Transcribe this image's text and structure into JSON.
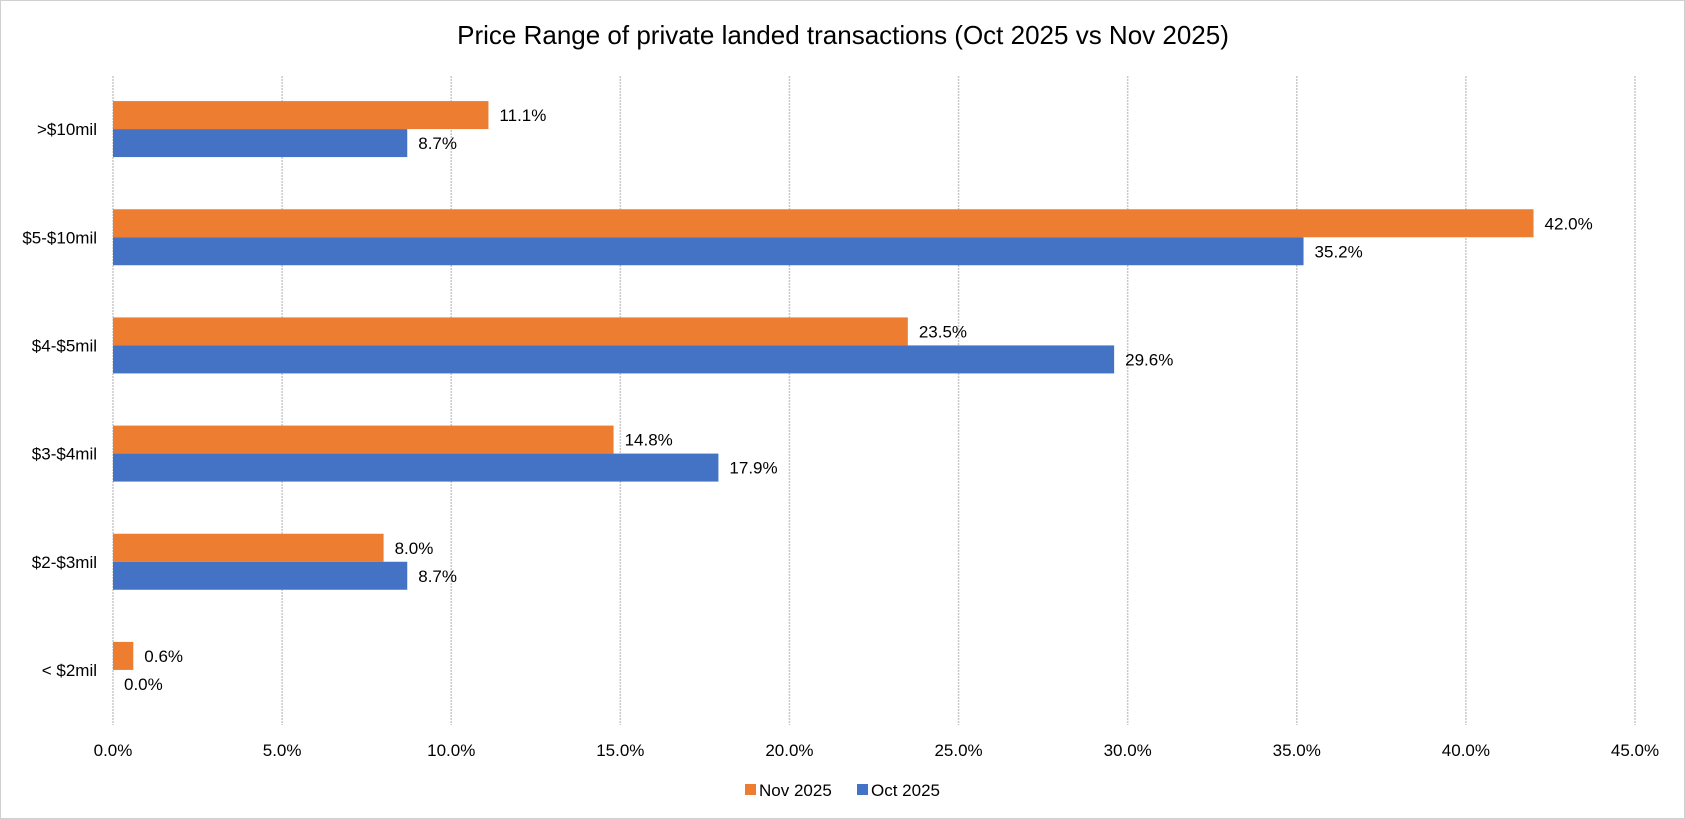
{
  "chart_data": {
    "type": "bar",
    "orientation": "horizontal",
    "title": "Price Range of private landed transactions (Oct 2025 vs Nov 2025)",
    "xlabel": "",
    "ylabel": "",
    "categories": [
      ">$10mil",
      "$5-$10mil",
      "$4-$5mil",
      "$3-$4mil",
      "$2-$3mil",
      "< $2mil"
    ],
    "series": [
      {
        "name": "Nov 2025",
        "color": "#ED7D31",
        "values": [
          11.1,
          42.0,
          23.5,
          14.8,
          8.0,
          0.6
        ],
        "labels": [
          "11.1%",
          "42.0%",
          "23.5%",
          "14.8%",
          "8.0%",
          "0.6%"
        ]
      },
      {
        "name": "Oct 2025",
        "color": "#4472C4",
        "values": [
          8.7,
          35.2,
          29.6,
          17.9,
          8.7,
          0.0
        ],
        "labels": [
          "8.7%",
          "35.2%",
          "29.6%",
          "17.9%",
          "8.7%",
          "0.0%"
        ]
      }
    ],
    "xlim": [
      0,
      45
    ],
    "xticks": [
      0,
      5,
      10,
      15,
      20,
      25,
      30,
      35,
      40,
      45
    ],
    "xtick_labels": [
      "0.0%",
      "5.0%",
      "10.0%",
      "15.0%",
      "20.0%",
      "25.0%",
      "30.0%",
      "35.0%",
      "40.0%",
      "45.0%"
    ],
    "grid": true,
    "legend": {
      "position": "bottom",
      "entries": [
        "Nov 2025",
        "Oct 2025"
      ]
    }
  }
}
